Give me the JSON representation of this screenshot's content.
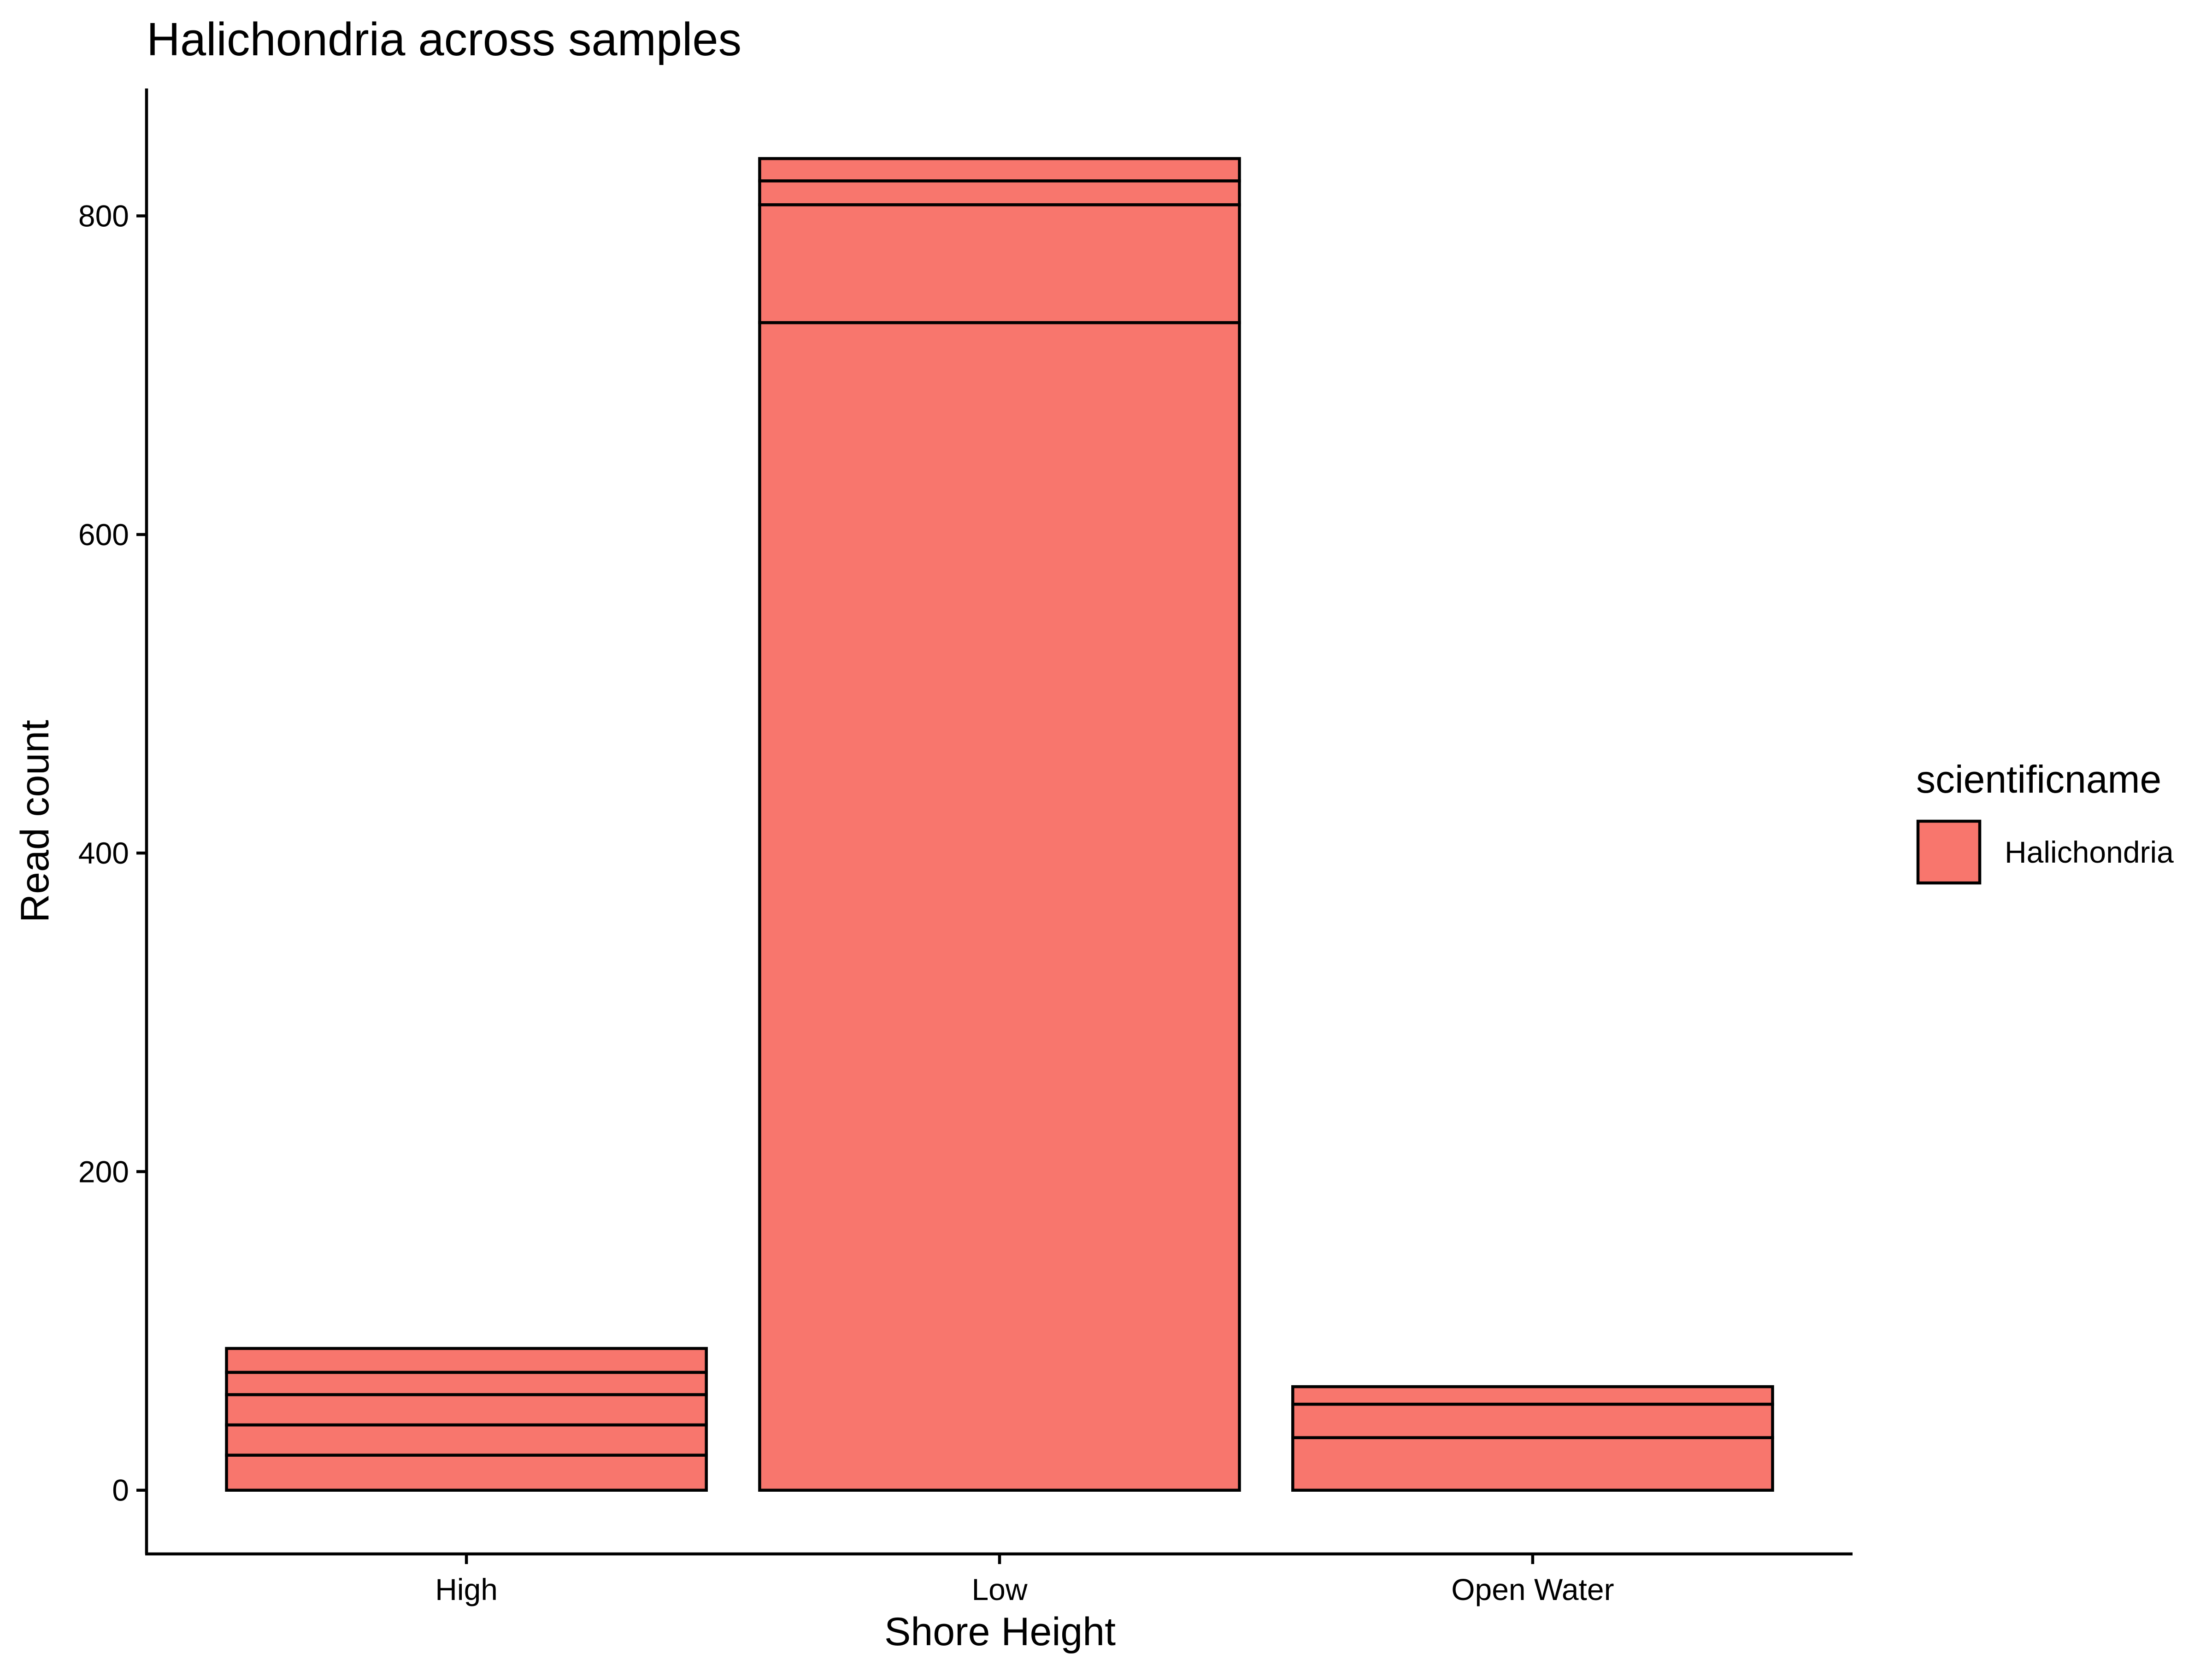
{
  "chart_data": {
    "type": "bar",
    "stacked": true,
    "title": "Halichondria across samples",
    "xlabel": "Shore Height",
    "ylabel": "Read count",
    "categories": [
      "High",
      "Low",
      "Open Water"
    ],
    "stacks": [
      {
        "category": "High",
        "segments": [
          22,
          19,
          19,
          14,
          15
        ],
        "total": 89
      },
      {
        "category": "Low",
        "segments": [
          733,
          74,
          15,
          14
        ],
        "total": 836
      },
      {
        "category": "Open Water",
        "segments": [
          33,
          21,
          11
        ],
        "total": 65
      }
    ],
    "ylim": [
      -40,
      880
    ],
    "yticks": [
      0,
      200,
      400,
      600,
      800
    ],
    "series": [
      {
        "name": "Halichondria",
        "color": "#F8766D"
      }
    ],
    "legend": {
      "title": "scientificname",
      "placement": "right",
      "entries": [
        "Halichondria"
      ]
    },
    "grid": false,
    "bar_outline_color": "#000000",
    "background": "#ffffff"
  }
}
